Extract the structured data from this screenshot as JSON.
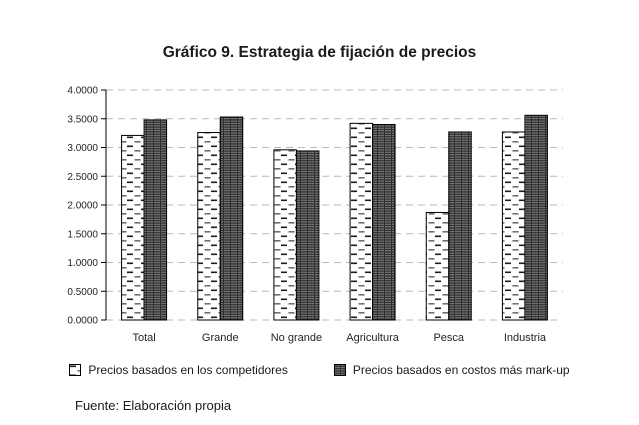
{
  "title": "Gráfico 9. Estrategia de fijación de precios",
  "source_note": "Fuente: Elaboración propia",
  "legend": [
    {
      "label": "Precios basados en los competidores",
      "swatch": "white-dashed-pattern"
    },
    {
      "label": "Precios basados en costos más mark-up",
      "swatch": "dark-dotted-pattern"
    }
  ],
  "colors": {
    "bar_light_fill": "#ffffff",
    "bar_dark_fill": "#2e2e2e",
    "bar_border": "#000000",
    "gridline": "#b9b9b9",
    "axis": "#000000",
    "text": "#1a1a1a"
  },
  "chart_data": {
    "type": "bar",
    "title": "Gráfico 9. Estrategia de fijación de precios",
    "categories": [
      "Total",
      "Grande",
      "No grande",
      "Agricultura",
      "Pesca",
      "Industria"
    ],
    "series": [
      {
        "name": "Precios basados en los competidores",
        "values": [
          3.21,
          3.26,
          2.96,
          3.42,
          1.87,
          3.27
        ]
      },
      {
        "name": "Precios basados en costos más mark-up",
        "values": [
          3.48,
          3.53,
          2.94,
          3.4,
          3.27,
          3.56
        ]
      }
    ],
    "xlabel": "",
    "ylabel": "",
    "ylim": [
      0,
      4
    ],
    "yticks": [
      0,
      0.5,
      1,
      1.5,
      2,
      2.5,
      3,
      3.5,
      4
    ],
    "ytick_labels": [
      "0.0000",
      "0.5000",
      "1.0000",
      "1.5000",
      "2.0000",
      "2.5000",
      "3.0000",
      "3.5000",
      "4.0000"
    ],
    "grid": "horizontal-dashed",
    "legend_position": "bottom"
  }
}
